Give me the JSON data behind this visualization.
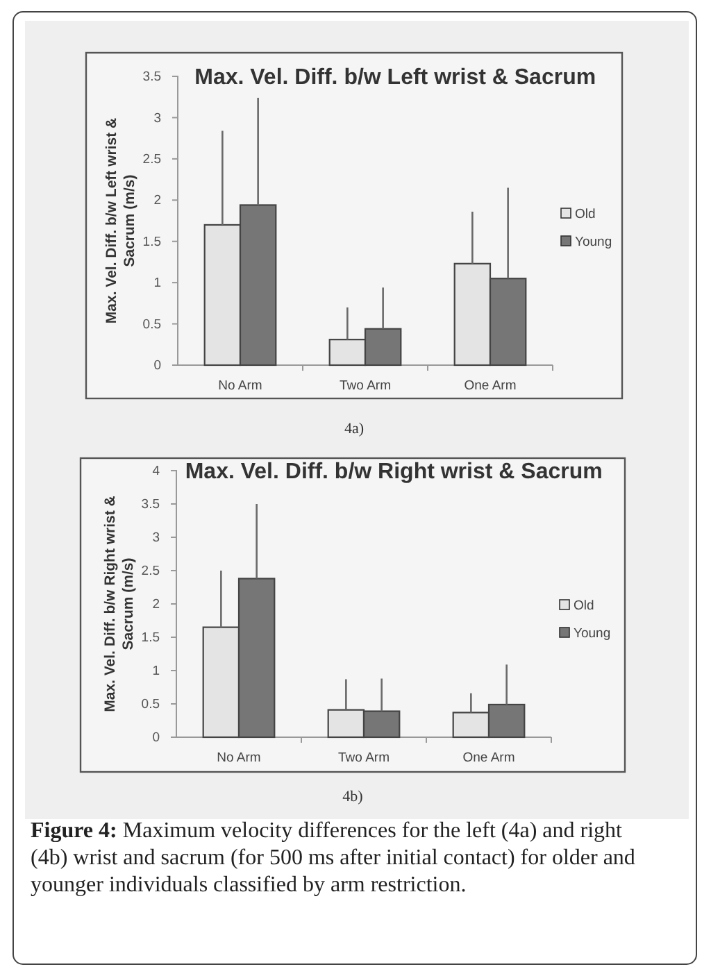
{
  "chart_data": [
    {
      "type": "bar",
      "title": "Max. Vel. Diff. b/w Left wrist & Sacrum",
      "ylabel": "Max. Vel. Diff. b/w Left wrist & Sacrum (m/s)",
      "categories": [
        "No Arm",
        "Two Arm",
        "One Arm"
      ],
      "series": [
        {
          "name": "Old",
          "color": "#e4e4e4",
          "values": [
            1.7,
            0.31,
            1.23
          ],
          "errors": [
            [
              1.7,
              2.84
            ],
            [
              0.31,
              0.7
            ],
            [
              1.23,
              1.86
            ]
          ]
        },
        {
          "name": "Young",
          "color": "#767676",
          "values": [
            1.94,
            0.44,
            1.05
          ],
          "errors": [
            [
              1.94,
              3.24
            ],
            [
              0.44,
              0.94
            ],
            [
              1.05,
              2.15
            ]
          ]
        }
      ],
      "ylim": [
        0,
        3.5
      ],
      "yticks": [
        0,
        0.5,
        1,
        1.5,
        2,
        2.5,
        3,
        3.5
      ],
      "legend": "right",
      "annotations": [
        "4a)"
      ]
    },
    {
      "type": "bar",
      "title": "Max. Vel. Diff. b/w Right wrist & Sacrum",
      "ylabel": "Max. Vel. Diff. b/w Right wrist & Sacrum (m/s)",
      "categories": [
        "No Arm",
        "Two Arm",
        "One Arm"
      ],
      "series": [
        {
          "name": "Old",
          "color": "#e4e4e4",
          "values": [
            1.65,
            0.41,
            0.37
          ],
          "errors": [
            [
              1.65,
              2.5
            ],
            [
              0.41,
              0.87
            ],
            [
              0.37,
              0.66
            ]
          ]
        },
        {
          "name": "Young",
          "color": "#767676",
          "values": [
            2.38,
            0.39,
            0.49
          ],
          "errors": [
            [
              2.38,
              3.5
            ],
            [
              0.39,
              0.88
            ],
            [
              0.49,
              1.09
            ]
          ]
        }
      ],
      "ylim": [
        0,
        4
      ],
      "yticks": [
        0,
        0.5,
        1,
        1.5,
        2,
        2.5,
        3,
        3.5,
        4
      ],
      "legend": "right",
      "annotations": [
        "4b)",
        "Figure 4: Maximum velocity differences for the left (4a) and right (4b) wrist and sacrum (for 500 ms after initial contact) for older and younger individuals classified by arm restriction."
      ]
    }
  ]
}
